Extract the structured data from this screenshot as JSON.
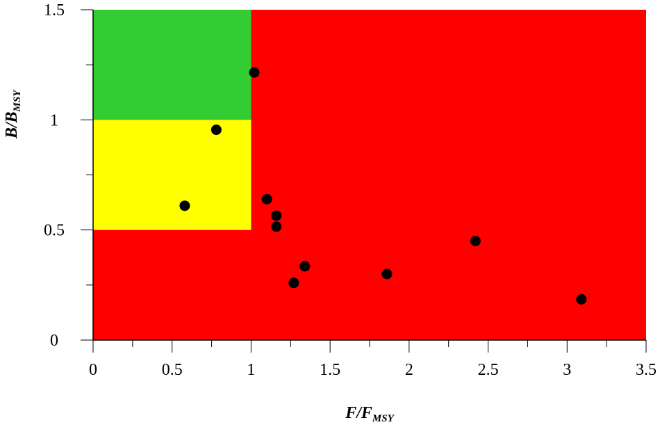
{
  "chart_data": {
    "type": "scatter",
    "title": "",
    "xlabel": {
      "main": "F/F",
      "sub": "MSY"
    },
    "ylabel": {
      "main": "B/B",
      "sub": "MSY"
    },
    "xlim": [
      0,
      3.5
    ],
    "ylim": [
      0,
      1.5
    ],
    "xticks": [
      0,
      0.5,
      1,
      1.5,
      2,
      2.5,
      3,
      3.5
    ],
    "xtick_labels": [
      "0",
      "0.5",
      "1",
      "1.5",
      "2",
      "2.5",
      "3",
      "3.5"
    ],
    "yticks": [
      0,
      0.5,
      1,
      1.5
    ],
    "ytick_labels": [
      "0",
      "0.5",
      "1",
      "1.5"
    ],
    "x_minor_step": 0.25,
    "y_minor_step": 0.25,
    "grid": false,
    "zones": [
      {
        "name": "red",
        "x": [
          0,
          3.5
        ],
        "y": [
          0,
          1.5
        ],
        "color": "#ff0000"
      },
      {
        "name": "green",
        "x": [
          0,
          1
        ],
        "y": [
          1,
          1.5
        ],
        "color": "#33cc33"
      },
      {
        "name": "yellow",
        "x": [
          0,
          1
        ],
        "y": [
          0.5,
          1
        ],
        "color": "#ffff00"
      }
    ],
    "point_color": "#000000",
    "points": [
      {
        "x": 1.02,
        "y": 1.215
      },
      {
        "x": 0.78,
        "y": 0.955
      },
      {
        "x": 0.58,
        "y": 0.61
      },
      {
        "x": 1.1,
        "y": 0.64
      },
      {
        "x": 1.16,
        "y": 0.565
      },
      {
        "x": 1.16,
        "y": 0.515
      },
      {
        "x": 1.34,
        "y": 0.335
      },
      {
        "x": 1.27,
        "y": 0.26
      },
      {
        "x": 1.86,
        "y": 0.3
      },
      {
        "x": 2.42,
        "y": 0.45
      },
      {
        "x": 3.09,
        "y": 0.185
      }
    ]
  }
}
